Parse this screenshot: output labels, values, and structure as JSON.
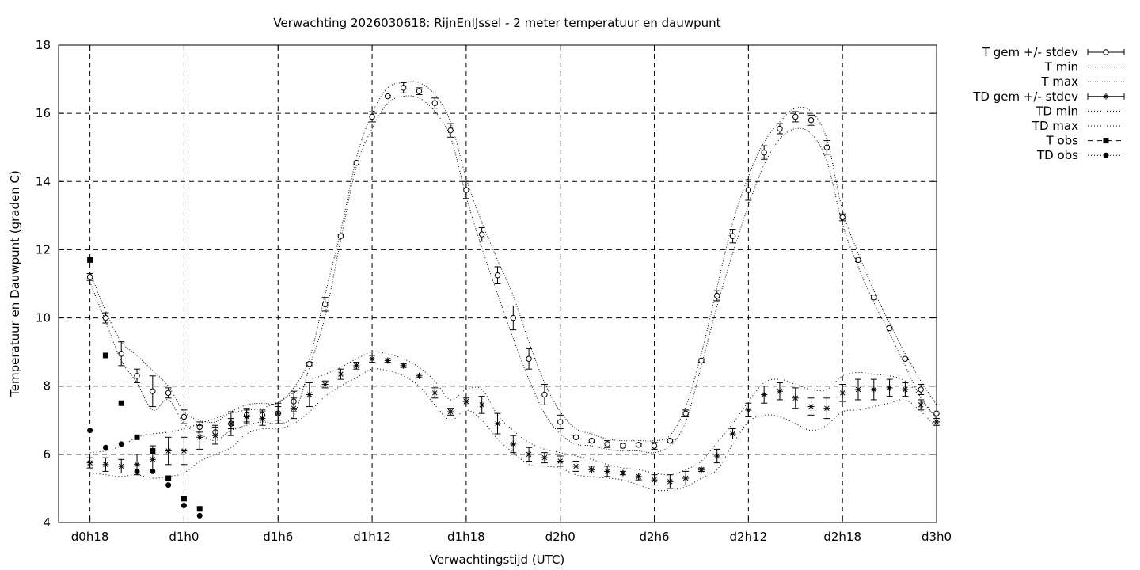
{
  "chart_data": {
    "type": "line",
    "title": "Verwachting 2026030618: RijnEnIJssel - 2 meter temperatuur en dauwpunt",
    "xlabel": "Verwachtingstijd (UTC)",
    "ylabel": "Temperatuur en Dauwpunt (graden C)",
    "xlim": [
      0,
      84
    ],
    "ylim": [
      4,
      18
    ],
    "x_ticks": [
      {
        "x": 3,
        "label": "d0h18"
      },
      {
        "x": 12,
        "label": "d1h0"
      },
      {
        "x": 21,
        "label": "d1h6"
      },
      {
        "x": 30,
        "label": "d1h12"
      },
      {
        "x": 39,
        "label": "d1h18"
      },
      {
        "x": 48,
        "label": "d2h0"
      },
      {
        "x": 57,
        "label": "d2h6"
      },
      {
        "x": 66,
        "label": "d2h12"
      },
      {
        "x": 75,
        "label": "d2h18"
      },
      {
        "x": 84,
        "label": "d3h0"
      }
    ],
    "y_ticks": [
      4,
      6,
      8,
      10,
      12,
      14,
      16,
      18
    ],
    "grid": true,
    "legend_position": "outside-right",
    "legend": [
      {
        "key": "t_mean",
        "label": "T gem +/- stdev"
      },
      {
        "key": "t_min",
        "label": "T min"
      },
      {
        "key": "t_max",
        "label": "T max"
      },
      {
        "key": "td_mean",
        "label": "TD gem +/- stdev"
      },
      {
        "key": "td_min",
        "label": "TD min"
      },
      {
        "key": "td_max",
        "label": "TD max"
      },
      {
        "key": "t_obs",
        "label": "T obs"
      },
      {
        "key": "td_obs",
        "label": "TD obs"
      }
    ],
    "x": [
      3,
      4.5,
      6,
      7.5,
      9,
      10.5,
      12,
      13.5,
      15,
      16.5,
      18,
      19.5,
      21,
      22.5,
      24,
      25.5,
      27,
      28.5,
      30,
      31.5,
      33,
      34.5,
      36,
      37.5,
      39,
      40.5,
      42,
      43.5,
      45,
      46.5,
      48,
      49.5,
      51,
      52.5,
      54,
      55.5,
      57,
      58.5,
      60,
      61.5,
      63,
      64.5,
      66,
      67.5,
      69,
      70.5,
      72,
      73.5,
      75,
      76.5,
      78,
      79.5,
      81,
      82.5,
      84
    ],
    "series": [
      {
        "key": "t_mean",
        "name": "T gem +/- stdev",
        "values": [
          11.2,
          10.0,
          8.95,
          8.3,
          7.85,
          7.8,
          7.1,
          6.8,
          6.65,
          6.9,
          7.15,
          7.15,
          7.2,
          7.55,
          8.65,
          10.4,
          12.4,
          14.55,
          15.9,
          16.5,
          16.75,
          16.65,
          16.3,
          15.5,
          13.75,
          12.45,
          11.25,
          10.0,
          8.8,
          7.75,
          6.95,
          6.5,
          6.4,
          6.3,
          6.25,
          6.28,
          6.25,
          6.4,
          7.2,
          8.75,
          10.65,
          12.4,
          13.75,
          14.85,
          15.55,
          15.9,
          15.8,
          15.0,
          12.95,
          11.7,
          10.6,
          9.7,
          8.8,
          7.9,
          7.2
        ],
        "stdev": [
          0.1,
          0.15,
          0.35,
          0.2,
          0.45,
          0.15,
          0.2,
          0.15,
          0.2,
          0.15,
          0.2,
          0.15,
          0.2,
          0.3,
          0.05,
          0.2,
          0.05,
          0.05,
          0.15,
          0.03,
          0.15,
          0.1,
          0.15,
          0.2,
          0.25,
          0.2,
          0.25,
          0.35,
          0.3,
          0.3,
          0.2,
          0.05,
          0.05,
          0.1,
          0.05,
          0.03,
          0.1,
          0.03,
          0.1,
          0.05,
          0.15,
          0.2,
          0.3,
          0.2,
          0.15,
          0.15,
          0.15,
          0.2,
          0.1,
          0.05,
          0.05,
          0.03,
          0.03,
          0.15,
          0.25
        ]
      },
      {
        "key": "t_min",
        "name": "T min",
        "values": [
          11.05,
          9.9,
          8.75,
          8.1,
          7.3,
          7.6,
          6.9,
          6.6,
          6.4,
          6.7,
          6.85,
          6.95,
          6.9,
          7.15,
          8.55,
          10.05,
          12.3,
          14.45,
          15.55,
          16.3,
          16.5,
          16.45,
          16.05,
          15.3,
          13.55,
          12.05,
          10.7,
          9.4,
          8.2,
          7.2,
          6.6,
          6.3,
          6.25,
          6.15,
          6.1,
          6.1,
          6.05,
          6.25,
          6.95,
          8.6,
          10.35,
          11.9,
          13.3,
          14.5,
          15.25,
          15.55,
          15.4,
          14.6,
          12.75,
          11.5,
          10.45,
          9.55,
          8.6,
          7.65,
          7.05
        ]
      },
      {
        "key": "t_max",
        "name": "T max",
        "values": [
          11.35,
          10.2,
          9.3,
          8.9,
          8.45,
          8.0,
          7.25,
          7.0,
          6.95,
          7.25,
          7.45,
          7.5,
          7.5,
          7.95,
          8.8,
          10.7,
          12.55,
          14.7,
          16.0,
          16.75,
          16.9,
          16.9,
          16.55,
          15.75,
          14.1,
          12.8,
          11.7,
          10.65,
          9.3,
          8.1,
          7.25,
          6.75,
          6.6,
          6.45,
          6.4,
          6.4,
          6.4,
          6.55,
          7.4,
          8.95,
          10.9,
          12.8,
          14.15,
          15.15,
          15.75,
          16.15,
          16.05,
          15.25,
          13.15,
          11.9,
          10.8,
          9.85,
          8.95,
          8.15,
          7.45
        ]
      },
      {
        "key": "td_mean",
        "name": "TD gem +/- stdev",
        "values": [
          5.75,
          5.7,
          5.65,
          5.7,
          5.85,
          6.1,
          6.1,
          6.5,
          6.55,
          6.9,
          7.1,
          7.05,
          7.2,
          7.35,
          7.75,
          8.05,
          8.35,
          8.6,
          8.8,
          8.75,
          8.6,
          8.3,
          7.8,
          7.25,
          7.55,
          7.45,
          6.9,
          6.3,
          6.0,
          5.9,
          5.8,
          5.65,
          5.55,
          5.5,
          5.45,
          5.35,
          5.25,
          5.2,
          5.3,
          5.55,
          5.95,
          6.6,
          7.3,
          7.75,
          7.85,
          7.65,
          7.4,
          7.35,
          7.8,
          7.9,
          7.9,
          7.95,
          7.9,
          7.45,
          6.95
        ],
        "stdev": [
          0.15,
          0.2,
          0.2,
          0.3,
          0.4,
          0.4,
          0.4,
          0.35,
          0.25,
          0.35,
          0.2,
          0.2,
          0.3,
          0.3,
          0.35,
          0.1,
          0.15,
          0.1,
          0.1,
          0.05,
          0.05,
          0.05,
          0.15,
          0.1,
          0.1,
          0.25,
          0.3,
          0.25,
          0.2,
          0.15,
          0.15,
          0.15,
          0.1,
          0.15,
          0.05,
          0.1,
          0.15,
          0.2,
          0.2,
          0.05,
          0.2,
          0.15,
          0.2,
          0.25,
          0.25,
          0.3,
          0.25,
          0.3,
          0.25,
          0.3,
          0.3,
          0.25,
          0.2,
          0.15,
          0.1
        ]
      },
      {
        "key": "td_min",
        "name": "TD min",
        "values": [
          5.45,
          5.4,
          5.35,
          5.4,
          5.3,
          5.35,
          5.45,
          5.8,
          6.0,
          6.2,
          6.6,
          6.75,
          6.75,
          6.9,
          7.25,
          7.7,
          8.0,
          8.25,
          8.5,
          8.45,
          8.3,
          8.0,
          7.45,
          7.0,
          7.3,
          7.0,
          6.45,
          6.05,
          5.7,
          5.65,
          5.6,
          5.4,
          5.35,
          5.3,
          5.25,
          5.1,
          4.95,
          4.95,
          5.05,
          5.3,
          5.55,
          6.3,
          6.95,
          7.15,
          7.1,
          6.9,
          6.7,
          6.85,
          7.25,
          7.3,
          7.4,
          7.5,
          7.6,
          7.25,
          6.8
        ]
      },
      {
        "key": "td_max",
        "name": "TD max",
        "values": [
          6.05,
          6.1,
          6.25,
          6.5,
          6.6,
          6.65,
          6.75,
          6.9,
          7.05,
          7.2,
          7.3,
          7.35,
          7.55,
          7.8,
          8.15,
          8.35,
          8.55,
          8.8,
          9.0,
          8.95,
          8.8,
          8.55,
          8.15,
          7.6,
          7.9,
          7.9,
          7.15,
          6.7,
          6.35,
          6.15,
          6.05,
          5.95,
          5.85,
          5.7,
          5.6,
          5.55,
          5.45,
          5.4,
          5.55,
          5.8,
          6.35,
          6.9,
          7.55,
          8.1,
          8.2,
          8.05,
          7.9,
          7.9,
          8.3,
          8.4,
          8.35,
          8.3,
          8.15,
          7.65,
          7.05
        ]
      },
      {
        "key": "t_obs",
        "name": "T obs",
        "x": [
          3,
          4.5,
          6,
          7.5,
          9,
          10.5,
          12,
          13.5
        ],
        "values": [
          11.7,
          8.9,
          7.5,
          6.5,
          6.1,
          5.3,
          4.7,
          4.4
        ]
      },
      {
        "key": "td_obs",
        "name": "TD obs",
        "x": [
          3,
          4.5,
          6,
          7.5,
          9,
          10.5,
          12,
          13.5
        ],
        "values": [
          6.7,
          6.2,
          6.3,
          5.5,
          5.5,
          5.1,
          4.5,
          4.2
        ]
      }
    ]
  }
}
